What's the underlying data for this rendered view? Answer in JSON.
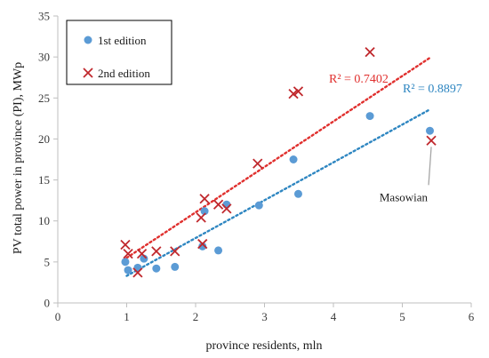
{
  "chart_data": {
    "type": "scatter",
    "xlabel": "province residents, mln",
    "ylabel": "PV total power in province (PI), MWp",
    "xlim": [
      0,
      6
    ],
    "ylim": [
      0,
      35
    ],
    "xticks": [
      0,
      1,
      2,
      3,
      4,
      5,
      6
    ],
    "yticks": [
      0,
      5,
      10,
      15,
      20,
      25,
      30,
      35
    ],
    "grid": false,
    "legend_position": "top-left",
    "series": [
      {
        "name": "1st edition",
        "marker": "circle",
        "color": "#5b9bd5",
        "points": [
          {
            "x": 0.98,
            "y": 5.0
          },
          {
            "x": 1.02,
            "y": 4.0
          },
          {
            "x": 1.16,
            "y": 4.3
          },
          {
            "x": 1.25,
            "y": 5.4
          },
          {
            "x": 1.43,
            "y": 4.2
          },
          {
            "x": 1.7,
            "y": 4.4
          },
          {
            "x": 2.1,
            "y": 6.9
          },
          {
            "x": 2.13,
            "y": 11.2
          },
          {
            "x": 2.33,
            "y": 6.4
          },
          {
            "x": 2.45,
            "y": 12.0
          },
          {
            "x": 2.92,
            "y": 11.9
          },
          {
            "x": 3.42,
            "y": 17.5
          },
          {
            "x": 3.49,
            "y": 13.3
          },
          {
            "x": 4.53,
            "y": 22.8
          },
          {
            "x": 5.4,
            "y": 21.0
          }
        ],
        "trendline": {
          "x": [
            1.0,
            5.4
          ],
          "y": [
            3.3,
            23.6
          ],
          "color": "#2e86c1",
          "r2_label": "R² = 0.8897"
        }
      },
      {
        "name": "2nd edition",
        "marker": "x",
        "color": "#c0282d",
        "points": [
          {
            "x": 0.98,
            "y": 7.1
          },
          {
            "x": 1.02,
            "y": 6.0
          },
          {
            "x": 1.16,
            "y": 3.7
          },
          {
            "x": 1.22,
            "y": 6.0
          },
          {
            "x": 1.43,
            "y": 6.3
          },
          {
            "x": 1.7,
            "y": 6.3
          },
          {
            "x": 2.08,
            "y": 10.4
          },
          {
            "x": 2.1,
            "y": 7.2
          },
          {
            "x": 2.13,
            "y": 12.7
          },
          {
            "x": 2.33,
            "y": 12.0
          },
          {
            "x": 2.45,
            "y": 11.5
          },
          {
            "x": 2.9,
            "y": 17.0
          },
          {
            "x": 3.42,
            "y": 25.5
          },
          {
            "x": 3.49,
            "y": 25.8
          },
          {
            "x": 4.53,
            "y": 30.6
          },
          {
            "x": 5.42,
            "y": 19.8
          }
        ],
        "trendline": {
          "x": [
            1.0,
            5.4
          ],
          "y": [
            5.5,
            29.9
          ],
          "color": "#e0302e",
          "r2_label": "R² = 0.7402"
        }
      }
    ],
    "annotations": [
      {
        "text": "Masowian",
        "point": {
          "x": 5.42,
          "y": 19.8
        }
      }
    ]
  }
}
